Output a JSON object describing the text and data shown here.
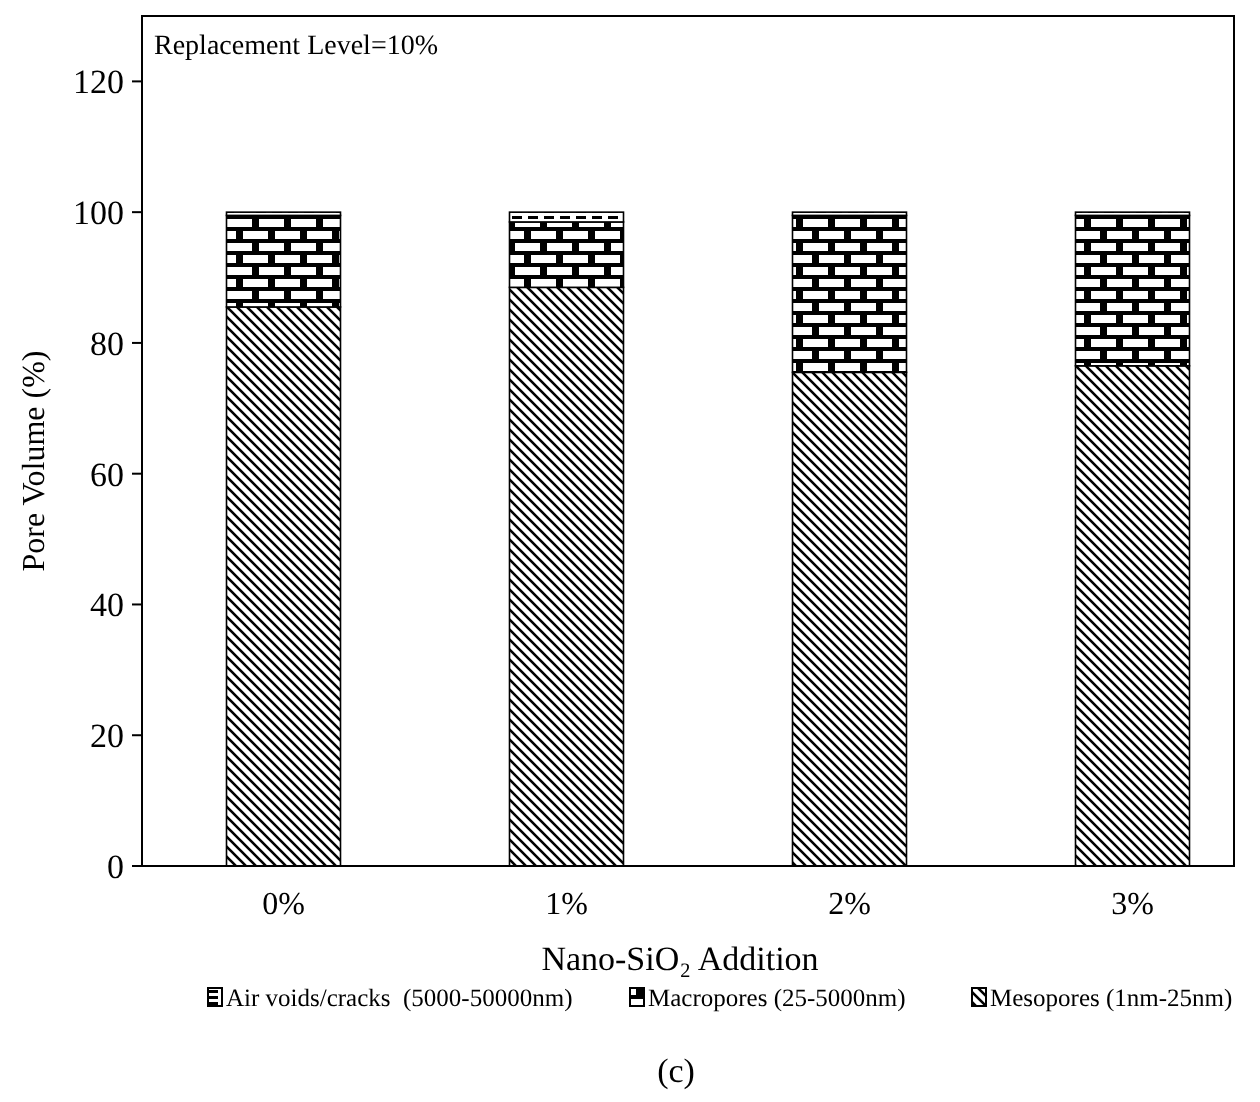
{
  "chart_data": {
    "type": "bar",
    "stacked": true,
    "categories": [
      "0%",
      "1%",
      "2%",
      "3%"
    ],
    "series": [
      {
        "name": "Mesopores (1nm-25nm)",
        "color": "#000000",
        "values": [
          85.5,
          88.5,
          75.5,
          76.5
        ]
      },
      {
        "name": "Macropores (25-5000nm)",
        "color": "#000000",
        "values": [
          14,
          10,
          24,
          23
        ]
      },
      {
        "name": "Air voids/cracks  (5000-50000nm)",
        "color": "#000000",
        "values": [
          0.5,
          1.5,
          0.5,
          0.5
        ]
      }
    ],
    "ylim": [
      0,
      130
    ],
    "yticks": [
      0,
      20,
      40,
      60,
      80,
      100,
      120
    ],
    "xlabel": "Nano-SiO₂ Addition",
    "ylabel": "Pore Volume (%)",
    "annotations": [
      "Replacement Level=10%",
      "(c)"
    ],
    "legend": "bottom",
    "grid": false
  }
}
